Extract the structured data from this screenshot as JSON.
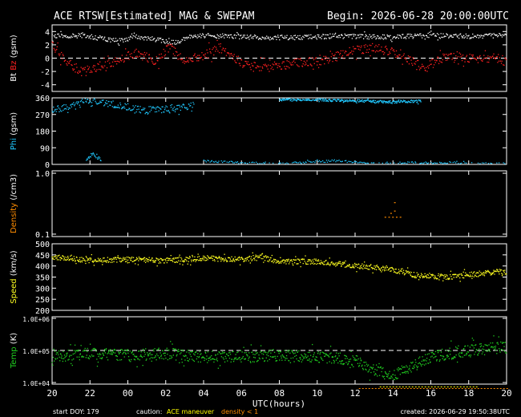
{
  "header": {
    "title": "ACE RTSW[Estimated] MAG & SWEPAM",
    "begin": "Begin: 2026-06-28 20:00:00UTC"
  },
  "footer": {
    "start_doy": "start DOY: 179",
    "caution": "caution:",
    "maneuver": "ACE maneuver",
    "density_note": "density < 1",
    "created": "created: 2026-06-29 19:50:38UTC"
  },
  "colors": {
    "bt": "#ffffff",
    "bz": "#ff2020",
    "phi": "#20c8ff",
    "density": "#ff8c00",
    "speed": "#ffff20",
    "temp": "#20d020",
    "axis": "#ffffff",
    "maneuver": "#ffff00",
    "density_flag": "#ff8c00"
  },
  "chart_data": [
    {
      "type": "scatter",
      "name": "bt-bz",
      "ylabel_a": "Bt",
      "ylabel_b": "Bz",
      "ylabel_c": "(gsm)",
      "ylim": [
        -5,
        5
      ],
      "ticks": [
        "4",
        "2",
        "0",
        "-2",
        "-4"
      ],
      "tick_values": [
        4,
        2,
        0,
        -2,
        -4
      ],
      "reference_line": 0,
      "series": [
        {
          "key": "bt",
          "anchors": [
            [
              0,
              3.3
            ],
            [
              1.5,
              3.4
            ],
            [
              2.5,
              3.0
            ],
            [
              3.5,
              2.6
            ],
            [
              4.5,
              3.2
            ],
            [
              5.5,
              2.8
            ],
            [
              6.5,
              2.3
            ],
            [
              7.5,
              3.4
            ],
            [
              9.5,
              3.3
            ],
            [
              11,
              3.1
            ],
            [
              13,
              3.1
            ],
            [
              15,
              3.3
            ],
            [
              17,
              3.2
            ],
            [
              19,
              3.3
            ],
            [
              20,
              3.4
            ],
            [
              21,
              3.4
            ],
            [
              22,
              3.3
            ],
            [
              24,
              3.4
            ]
          ],
          "scatter": 0.35,
          "n": 600
        },
        {
          "key": "bz",
          "anchors": [
            [
              0,
              1.8
            ],
            [
              0.8,
              -0.5
            ],
            [
              1.5,
              -2.0
            ],
            [
              2.5,
              -1.2
            ],
            [
              3.5,
              -0.3
            ],
            [
              4.5,
              0.8
            ],
            [
              5.5,
              -0.5
            ],
            [
              6.2,
              1.8
            ],
            [
              7,
              -0.5
            ],
            [
              8,
              0.5
            ],
            [
              9,
              1.5
            ],
            [
              10,
              -0.8
            ],
            [
              11,
              -1.4
            ],
            [
              12,
              -1.2
            ],
            [
              13,
              -0.6
            ],
            [
              14,
              -0.5
            ],
            [
              15,
              0.2
            ],
            [
              16,
              1.2
            ],
            [
              17,
              1.5
            ],
            [
              18,
              1.0
            ],
            [
              19,
              -0.5
            ],
            [
              19.7,
              -1.5
            ],
            [
              20.5,
              0.0
            ],
            [
              21.5,
              0.3
            ],
            [
              22.5,
              -0.2
            ],
            [
              23.5,
              0.0
            ],
            [
              24,
              -0.5
            ]
          ],
          "scatter": 0.7,
          "n": 650
        }
      ]
    },
    {
      "type": "scatter",
      "name": "phi",
      "ylabel_a": "Phi",
      "ylabel_c": "(gsm)",
      "ylim": [
        0,
        360
      ],
      "ticks": [
        "360",
        "270",
        "180",
        "90",
        "0"
      ],
      "tick_values": [
        360,
        270,
        180,
        90,
        0
      ],
      "series": [
        {
          "key": "phi",
          "anchors": [
            [
              0,
              290
            ],
            [
              1,
              320
            ],
            [
              2,
              350
            ],
            [
              3,
              330
            ],
            [
              4,
              310
            ],
            [
              5,
              290
            ],
            [
              6,
              300
            ],
            [
              7,
              310
            ],
            [
              7.5,
              320
            ]
          ],
          "scatter": 18,
          "n": 220
        },
        {
          "key": "phi",
          "anchors": [
            [
              8,
              20
            ],
            [
              10,
              8
            ],
            [
              12,
              3
            ],
            [
              15,
              20
            ],
            [
              17,
              3
            ],
            [
              18,
              8
            ],
            [
              20,
              8
            ],
            [
              22,
              5
            ],
            [
              24,
              3
            ]
          ],
          "scatter": 6,
          "n": 260
        },
        {
          "key": "phi",
          "anchors": [
            [
              24,
              350
            ],
            [
              28,
              350
            ],
            [
              30,
              345
            ],
            [
              32,
              345
            ],
            [
              34,
              340
            ],
            [
              36,
              338
            ],
            [
              38,
              342
            ],
            [
              39,
              342
            ]
          ],
          "scatter": 7,
          "n": 300,
          "xscale": 0.5
        },
        {
          "key": "phi",
          "anchors": [
            [
              1.8,
              30
            ],
            [
              2.2,
              60
            ],
            [
              2.6,
              20
            ]
          ],
          "scatter": 12,
          "n": 25
        }
      ]
    },
    {
      "type": "scatter",
      "name": "density",
      "ylabel_a": "Density",
      "ylabel_c": "(/cm3)",
      "ylim": [
        0.1,
        1.0
      ],
      "log": true,
      "ticks": [
        "1.0",
        "0.1"
      ],
      "tick_values": [
        1.0,
        0.1
      ],
      "series": [
        {
          "key": "density",
          "points": [
            [
              17.6,
              0.19
            ],
            [
              17.8,
              0.19
            ],
            [
              18.0,
              0.19
            ],
            [
              18.2,
              0.19
            ],
            [
              18.4,
              0.19
            ],
            [
              17.9,
              0.22
            ],
            [
              18.1,
              0.24
            ],
            [
              18.1,
              0.33
            ]
          ]
        }
      ]
    },
    {
      "type": "scatter",
      "name": "speed",
      "ylabel_a": "Speed",
      "ylabel_c": "(km/s)",
      "ylim": [
        200,
        500
      ],
      "ticks": [
        "500",
        "450",
        "400",
        "350",
        "300",
        "250",
        "200"
      ],
      "tick_values": [
        500,
        450,
        400,
        350,
        300,
        250,
        200
      ],
      "series": [
        {
          "key": "speed",
          "anchors": [
            [
              0,
              440
            ],
            [
              2,
              425
            ],
            [
              4,
              430
            ],
            [
              6,
              425
            ],
            [
              8,
              435
            ],
            [
              10,
              430
            ],
            [
              11,
              440
            ],
            [
              12,
              420
            ],
            [
              13,
              420
            ],
            [
              14,
              420
            ],
            [
              15,
              410
            ],
            [
              16,
              400
            ],
            [
              17,
              395
            ],
            [
              18,
              385
            ],
            [
              19,
              360
            ],
            [
              20,
              355
            ],
            [
              21,
              350
            ],
            [
              22,
              360
            ],
            [
              23,
              370
            ],
            [
              24,
              375
            ]
          ],
          "scatter": 12,
          "n": 900
        }
      ]
    },
    {
      "type": "scatter",
      "name": "temp",
      "ylabel_a": "Temp",
      "ylabel_c": "(K)",
      "ylim_exp": [
        4,
        6
      ],
      "log": true,
      "ticks": [
        "1.0E+06",
        "1.0E+05",
        "1.0E+04"
      ],
      "tick_values": [
        6,
        5,
        4
      ],
      "reference_line": 5,
      "series": [
        {
          "key": "temp",
          "anchors": [
            [
              0,
              4.8
            ],
            [
              2,
              4.9
            ],
            [
              4,
              4.85
            ],
            [
              6,
              4.9
            ],
            [
              8,
              4.8
            ],
            [
              10,
              4.8
            ],
            [
              12,
              4.85
            ],
            [
              14,
              4.8
            ],
            [
              16,
              4.7
            ],
            [
              17,
              4.4
            ],
            [
              18,
              4.2
            ],
            [
              19,
              4.5
            ],
            [
              20,
              4.8
            ],
            [
              21,
              4.9
            ],
            [
              22,
              5.0
            ],
            [
              24,
              5.1
            ]
          ],
          "scatter": 0.18,
          "n": 900
        }
      ]
    }
  ],
  "x_axis": {
    "xlabel": "UTC(hours)",
    "ticks": [
      "20",
      "22",
      "00",
      "02",
      "04",
      "06",
      "08",
      "10",
      "12",
      "14",
      "16",
      "18",
      "20"
    ],
    "tick_values": [
      0,
      2,
      4,
      6,
      8,
      10,
      12,
      14,
      16,
      18,
      20,
      22,
      24
    ],
    "xlim": [
      0,
      24
    ]
  },
  "flags": [
    {
      "key": "maneuver",
      "x": [
        17.3,
        22.5
      ]
    },
    {
      "key": "density_flag",
      "x": [
        16.2,
        24
      ]
    }
  ]
}
